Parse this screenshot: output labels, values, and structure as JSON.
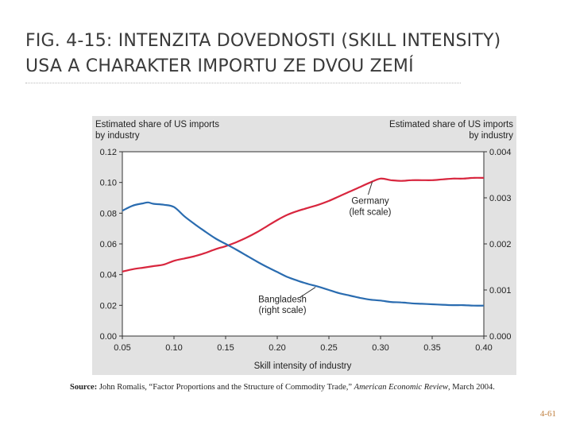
{
  "slide": {
    "title_line1": "FIG. 4-15: INTENZITA DOVEDNOSTI (SKILL INTENSITY)",
    "title_line2": "USA A CHARAKTER IMPORTU ZE DVOU ZEMÍ",
    "slide_number": "4-61"
  },
  "source": {
    "label": "Source:",
    "text1": " John Romalis, “Factor Proportions and the Structure of Commodity Trade,” ",
    "journal": "American Economic Review",
    "text2": ", March 2004."
  },
  "chart_data": {
    "type": "line",
    "xlabel": "Skill intensity of industry",
    "ylabel_left": "Estimated share of US imports by industry",
    "ylabel_right": "Estimated share of US imports by industry",
    "ylabel_left_line1": "Estimated share of US imports",
    "ylabel_left_line2": "by industry",
    "ylabel_right_line1": "Estimated share of US imports",
    "ylabel_right_line2": "by industry",
    "xlim": [
      0.05,
      0.4
    ],
    "ylim_left": [
      0,
      0.12
    ],
    "ylim_right": [
      0,
      0.004
    ],
    "x_ticks": [
      "0.05",
      "0.10",
      "0.15",
      "0.20",
      "0.25",
      "0.30",
      "0.35",
      "0.40"
    ],
    "y_left_ticks": [
      "0.00",
      "0.02",
      "0.04",
      "0.06",
      "0.08",
      "0.10",
      "0.12"
    ],
    "y_right_ticks": [
      "0.000",
      "0.001",
      "0.002",
      "0.003",
      "0.004"
    ],
    "colors": {
      "germany": "#d8263e",
      "bangladesh": "#2a6cb0",
      "plot_bg": "#ffffff",
      "panel_bg": "#e2e2e2"
    },
    "series": [
      {
        "name": "Germany",
        "axis": "left",
        "label_line1": "Germany",
        "label_line2": "(left scale)",
        "x": [
          0.05,
          0.06,
          0.07,
          0.08,
          0.09,
          0.1,
          0.11,
          0.12,
          0.13,
          0.14,
          0.15,
          0.16,
          0.17,
          0.18,
          0.19,
          0.2,
          0.21,
          0.22,
          0.23,
          0.24,
          0.25,
          0.26,
          0.27,
          0.28,
          0.29,
          0.3,
          0.31,
          0.32,
          0.33,
          0.34,
          0.35,
          0.36,
          0.37,
          0.38,
          0.39,
          0.4
        ],
        "y": [
          0.042,
          0.0435,
          0.0445,
          0.0455,
          0.0465,
          0.049,
          0.0505,
          0.052,
          0.054,
          0.0565,
          0.0585,
          0.061,
          0.064,
          0.0675,
          0.0715,
          0.0755,
          0.079,
          0.0815,
          0.0835,
          0.0855,
          0.088,
          0.091,
          0.094,
          0.097,
          0.1,
          0.1025,
          0.1015,
          0.101,
          0.1015,
          0.1015,
          0.1015,
          0.102,
          0.1025,
          0.1025,
          0.103,
          0.103
        ]
      },
      {
        "name": "Bangladesh",
        "axis": "right",
        "label_line1": "Bangladesh",
        "label_line2": "(right scale)",
        "x": [
          0.05,
          0.06,
          0.07,
          0.075,
          0.08,
          0.09,
          0.1,
          0.11,
          0.12,
          0.13,
          0.14,
          0.15,
          0.16,
          0.17,
          0.18,
          0.19,
          0.2,
          0.21,
          0.22,
          0.23,
          0.24,
          0.25,
          0.26,
          0.27,
          0.28,
          0.29,
          0.3,
          0.31,
          0.32,
          0.33,
          0.34,
          0.35,
          0.36,
          0.37,
          0.38,
          0.39,
          0.4
        ],
        "y": [
          0.00272,
          0.00283,
          0.00288,
          0.0029,
          0.00287,
          0.00285,
          0.0028,
          0.0026,
          0.00243,
          0.00227,
          0.00212,
          0.002,
          0.00188,
          0.00175,
          0.00162,
          0.0015,
          0.00139,
          0.00128,
          0.0012,
          0.00113,
          0.00107,
          0.001,
          0.00093,
          0.00088,
          0.00083,
          0.00079,
          0.00077,
          0.00074,
          0.00073,
          0.00071,
          0.0007,
          0.00069,
          0.00068,
          0.00067,
          0.00067,
          0.00066,
          0.00066
        ]
      }
    ]
  }
}
